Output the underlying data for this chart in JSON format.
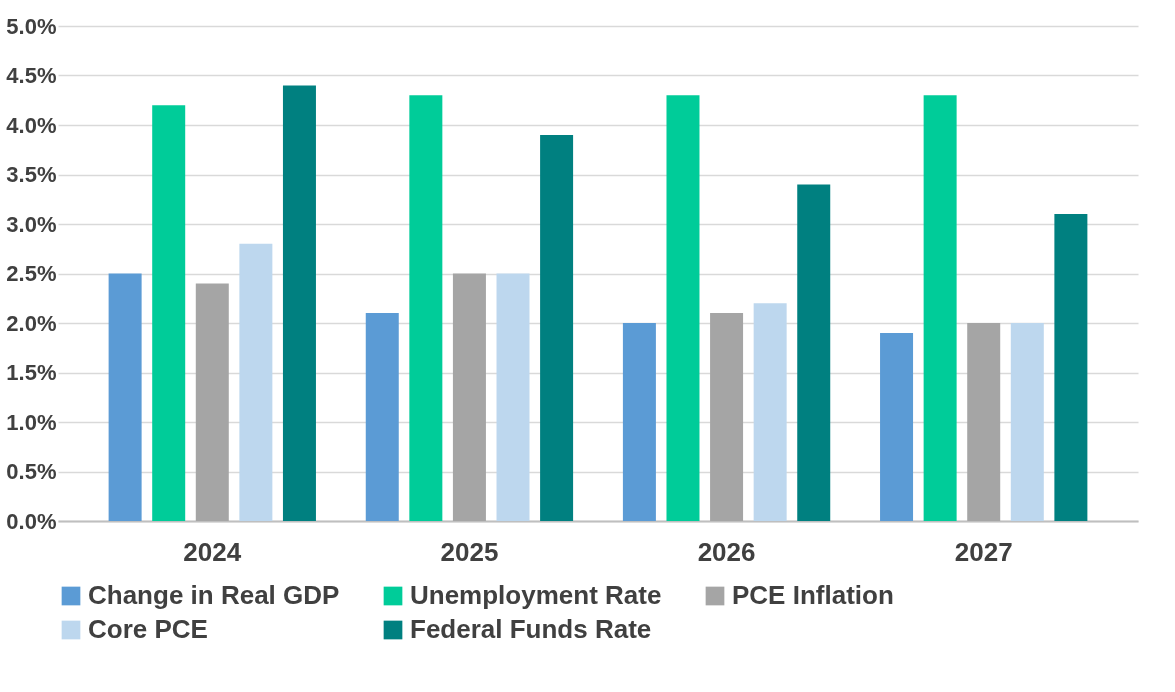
{
  "chart_data": {
    "type": "bar",
    "categories": [
      "2024",
      "2025",
      "2026",
      "2027"
    ],
    "series": [
      {
        "name": "Change in Real GDP",
        "color": "#5b9bd5",
        "values": [
          2.5,
          2.1,
          2.0,
          1.9
        ]
      },
      {
        "name": "Unemployment Rate",
        "color": "#00cc99",
        "values": [
          4.2,
          4.3,
          4.3,
          4.3
        ]
      },
      {
        "name": "PCE Inflation",
        "color": "#a5a5a5",
        "values": [
          2.4,
          2.5,
          2.1,
          2.0
        ]
      },
      {
        "name": "Core PCE",
        "color": "#bdd7ee",
        "values": [
          2.8,
          2.5,
          2.2,
          2.0
        ]
      },
      {
        "name": "Federal Funds Rate",
        "color": "#008080",
        "values": [
          4.4,
          3.9,
          3.4,
          3.1
        ]
      }
    ],
    "ylim": [
      0,
      5
    ],
    "yticks": [
      {
        "value": 0,
        "label": "0.0%"
      },
      {
        "value": 0.5,
        "label": "0.5%"
      },
      {
        "value": 1,
        "label": "1.0%"
      },
      {
        "value": 1.5,
        "label": "1.5%"
      },
      {
        "value": 2,
        "label": "2.0%"
      },
      {
        "value": 2.5,
        "label": "2.5%"
      },
      {
        "value": 3,
        "label": "3.0%"
      },
      {
        "value": 3.5,
        "label": "3.5%"
      },
      {
        "value": 4,
        "label": "4.0%"
      },
      {
        "value": 4.5,
        "label": "4.5%"
      },
      {
        "value": 5,
        "label": "5.0%"
      }
    ],
    "grid": "y",
    "legend": "bottom"
  }
}
